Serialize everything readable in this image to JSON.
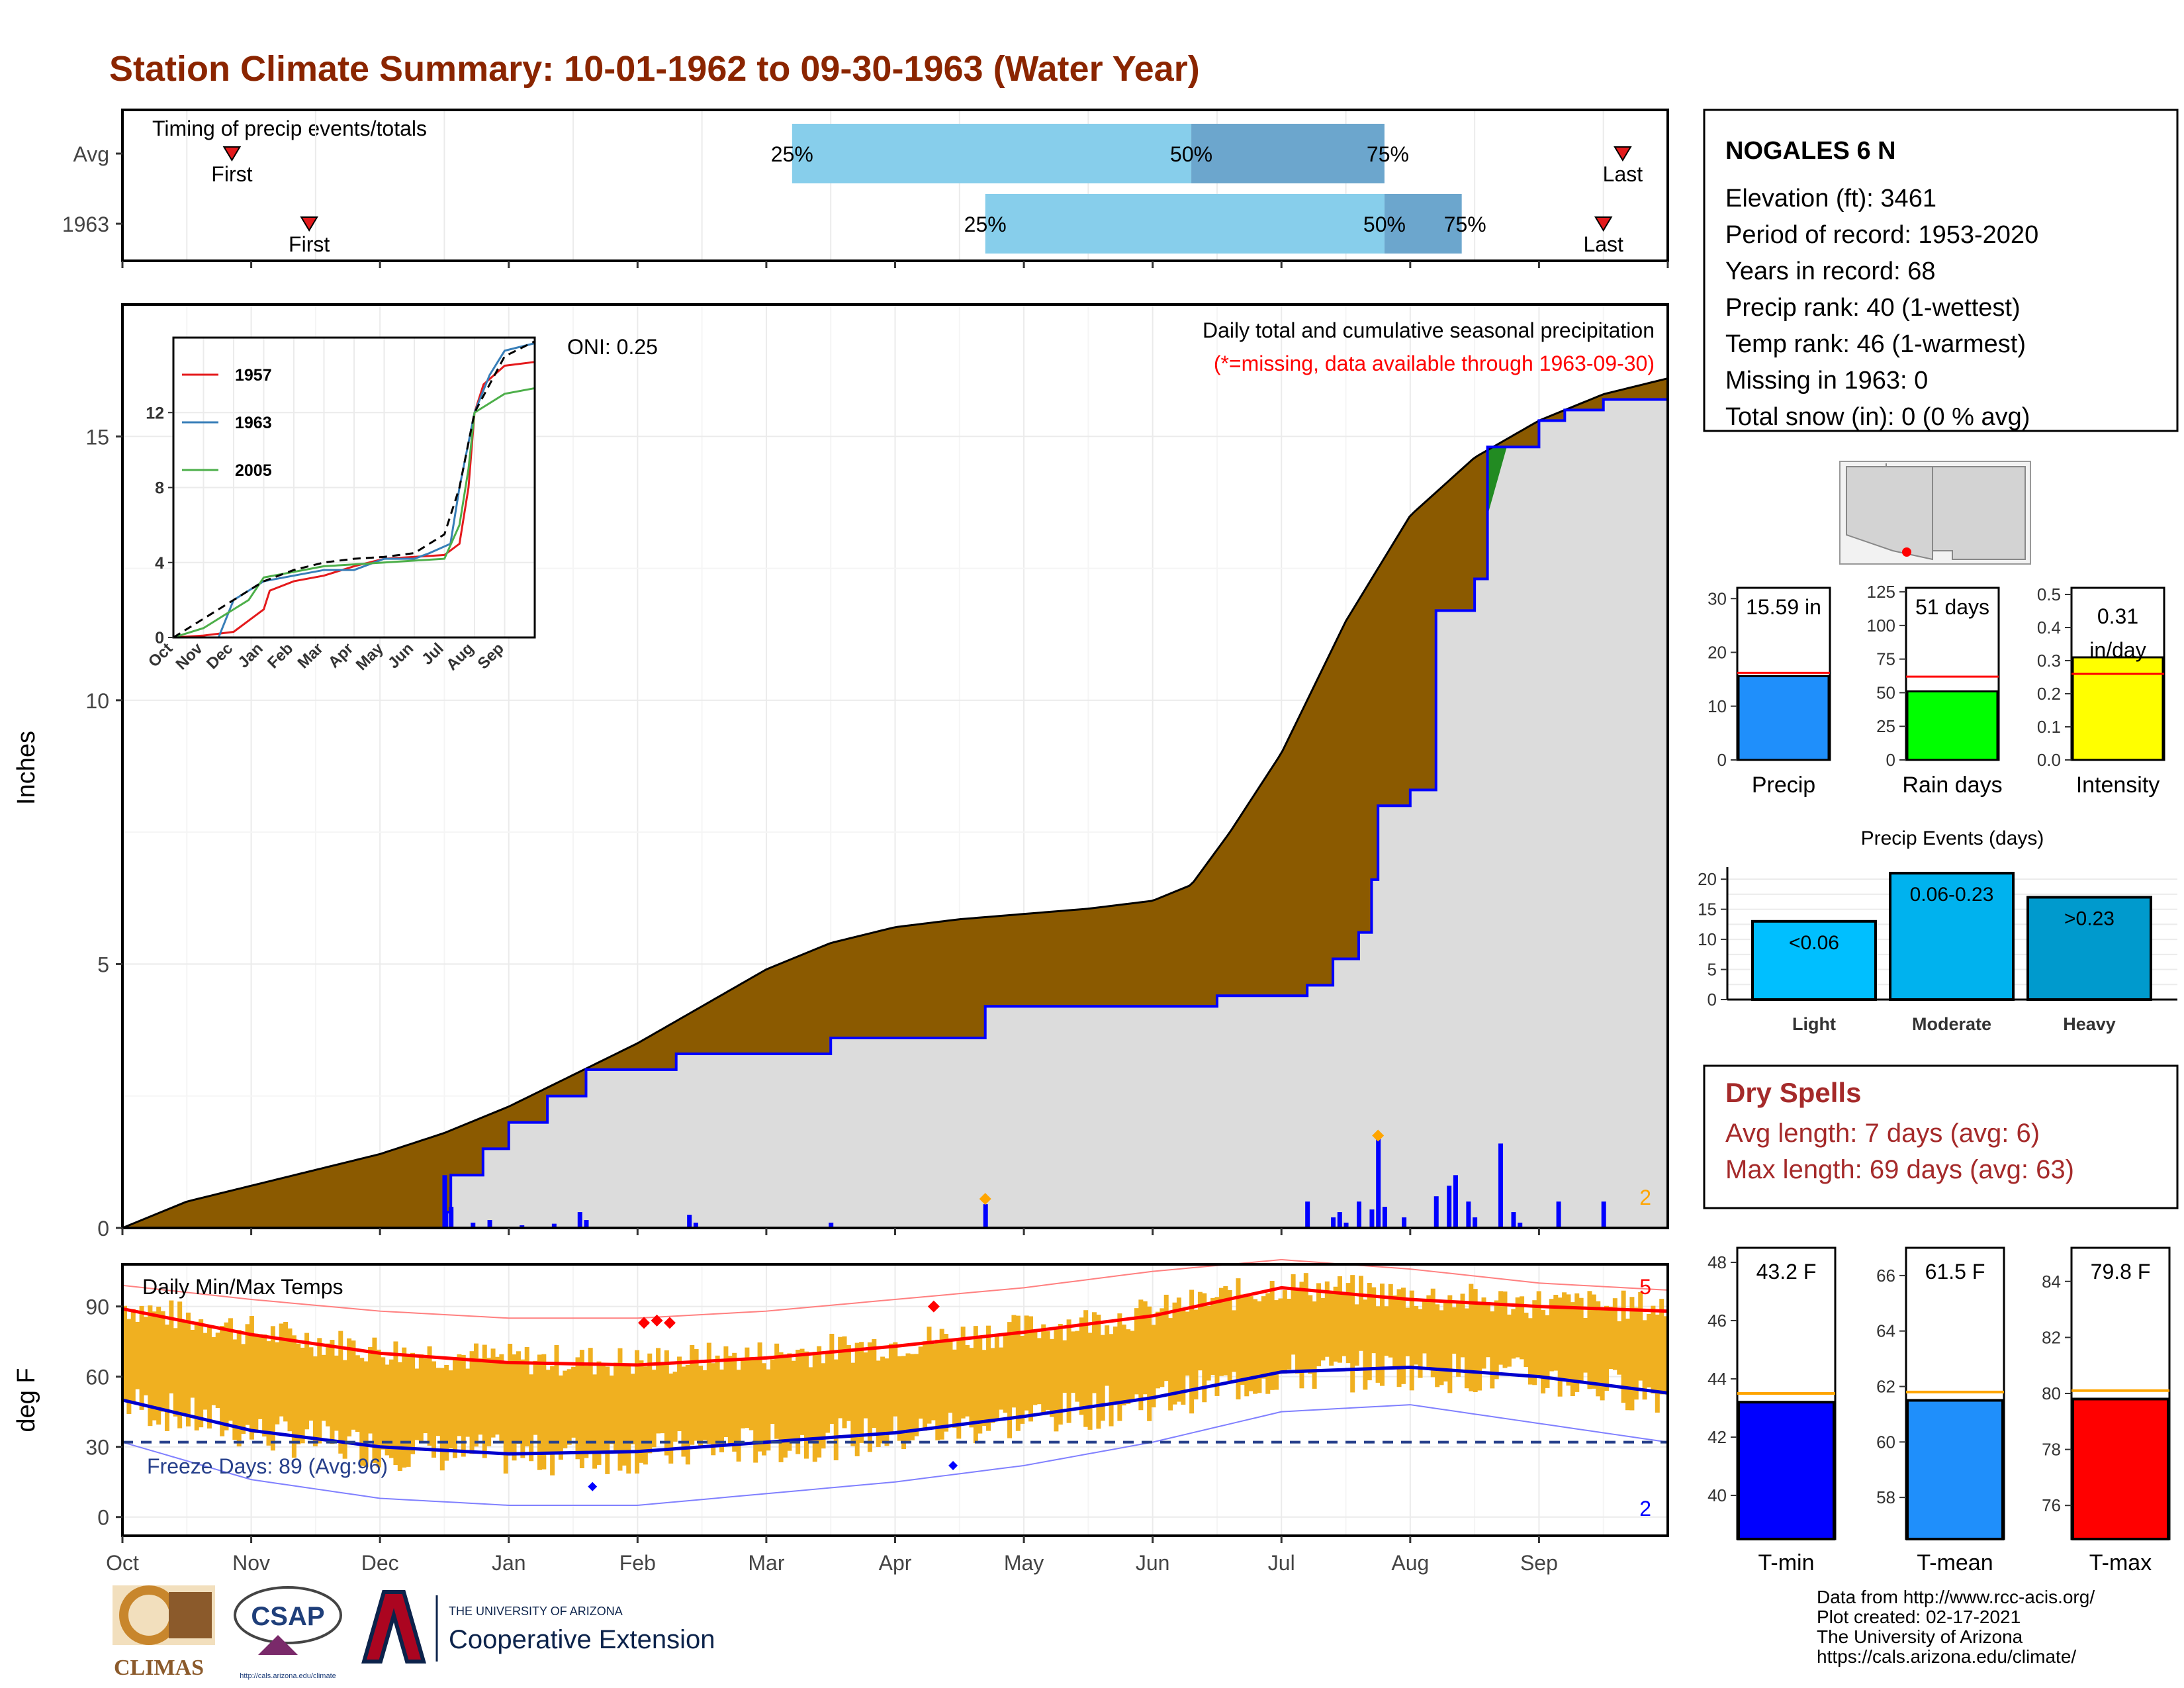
{
  "title": "Station Climate Summary: 10-01-1962 to 09-30-1963 (Water Year)",
  "timing": {
    "panel_label": "Timing of precip events/totals",
    "rows": [
      {
        "label": "Avg",
        "first_label": "First",
        "last_label": "Last",
        "first_month": 0.85,
        "last_month": 11.65,
        "p25_month": 5.2,
        "p50_month": 8.3,
        "p75_month": 9.8,
        "p25_label": "25%",
        "p50_label": "50%",
        "p75_label": "75%"
      },
      {
        "label": "1963",
        "first_label": "First",
        "last_label": "Last",
        "first_month": 1.45,
        "last_month": 11.5,
        "p25_month": 6.7,
        "p50_month": 9.8,
        "p75_month": 10.4,
        "p25_label": "25%",
        "p50_label": "50%",
        "p75_label": "75%"
      }
    ]
  },
  "station": {
    "name": "NOGALES 6 N",
    "lines": [
      "Elevation (ft): 3461",
      "Period of record: 1953-2020",
      "Years in record: 68",
      "Precip rank: 40 (1-wettest)",
      "Temp rank: 46 (1-warmest)",
      "Missing in 1963: 0",
      "Total snow (in): 0 (0 % avg)"
    ]
  },
  "precip_panel": {
    "ylabel": "Inches",
    "yticks": [
      0,
      5,
      10,
      15
    ],
    "ymax": 17.5,
    "title_line1": "Daily total and cumulative seasonal precipitation",
    "title_line2": "(*=missing, data available through 1963-09-30)",
    "oni_label": "ONI: 0.25",
    "corner_count": "2",
    "avg_cumulative": [
      [
        0,
        0
      ],
      [
        0.5,
        0.5
      ],
      [
        1,
        0.8
      ],
      [
        1.5,
        1.1
      ],
      [
        2,
        1.4
      ],
      [
        2.5,
        1.8
      ],
      [
        3,
        2.3
      ],
      [
        3.5,
        2.9
      ],
      [
        4,
        3.5
      ],
      [
        4.5,
        4.2
      ],
      [
        5,
        4.9
      ],
      [
        5.5,
        5.4
      ],
      [
        6,
        5.7
      ],
      [
        6.5,
        5.85
      ],
      [
        7,
        5.95
      ],
      [
        7.5,
        6.05
      ],
      [
        8,
        6.2
      ],
      [
        8.3,
        6.5
      ],
      [
        8.6,
        7.5
      ],
      [
        9,
        9.0
      ],
      [
        9.5,
        11.5
      ],
      [
        10,
        13.5
      ],
      [
        10.5,
        14.6
      ],
      [
        11,
        15.3
      ],
      [
        11.5,
        15.8
      ],
      [
        12,
        16.1
      ]
    ],
    "year_cumulative": [
      [
        0,
        0
      ],
      [
        2,
        0
      ],
      [
        2.52,
        0.3
      ],
      [
        2.55,
        1.0
      ],
      [
        2.8,
        1.5
      ],
      [
        3.0,
        2.0
      ],
      [
        3.3,
        2.5
      ],
      [
        3.6,
        3.0
      ],
      [
        4.0,
        3.0
      ],
      [
        4.3,
        3.0
      ],
      [
        4.3,
        3.3
      ],
      [
        5.0,
        3.3
      ],
      [
        5.5,
        3.6
      ],
      [
        6.0,
        3.6
      ],
      [
        6.7,
        3.6
      ],
      [
        6.7,
        4.2
      ],
      [
        8.0,
        4.2
      ],
      [
        8.3,
        4.2
      ],
      [
        8.5,
        4.4
      ],
      [
        9.2,
        4.6
      ],
      [
        9.4,
        5.1
      ],
      [
        9.6,
        5.6
      ],
      [
        9.7,
        6.6
      ],
      [
        9.75,
        8.0
      ],
      [
        10.0,
        8.3
      ],
      [
        10.2,
        11.7
      ],
      [
        10.5,
        12.3
      ],
      [
        10.6,
        14.8
      ],
      [
        11.0,
        15.3
      ],
      [
        11.2,
        15.5
      ],
      [
        11.5,
        15.7
      ],
      [
        12,
        15.7
      ]
    ],
    "daily_bars": [
      [
        2.5,
        1.0
      ],
      [
        2.55,
        0.4
      ],
      [
        2.72,
        0.1
      ],
      [
        2.85,
        0.15
      ],
      [
        3.1,
        0.05
      ],
      [
        3.35,
        0.08
      ],
      [
        3.55,
        0.3
      ],
      [
        3.6,
        0.15
      ],
      [
        4.4,
        0.25
      ],
      [
        4.45,
        0.1
      ],
      [
        5.5,
        0.1
      ],
      [
        6.7,
        0.45
      ],
      [
        9.2,
        0.5
      ],
      [
        9.4,
        0.2
      ],
      [
        9.45,
        0.3
      ],
      [
        9.5,
        0.1
      ],
      [
        9.6,
        0.5
      ],
      [
        9.7,
        0.35
      ],
      [
        9.75,
        1.7
      ],
      [
        9.8,
        0.4
      ],
      [
        9.95,
        0.2
      ],
      [
        10.2,
        0.6
      ],
      [
        10.3,
        0.8
      ],
      [
        10.35,
        1.0
      ],
      [
        10.45,
        0.5
      ],
      [
        10.5,
        0.2
      ],
      [
        10.7,
        1.6
      ],
      [
        10.8,
        0.3
      ],
      [
        10.85,
        0.1
      ],
      [
        11.15,
        0.5
      ],
      [
        11.5,
        0.5
      ]
    ],
    "markers": [
      [
        6.7,
        0.55
      ],
      [
        9.75,
        1.75
      ]
    ]
  },
  "inset": {
    "series": [
      {
        "name": "1957",
        "color": "#e41a1c",
        "points": [
          [
            0,
            0
          ],
          [
            1,
            0.1
          ],
          [
            2,
            0.3
          ],
          [
            3,
            1.5
          ],
          [
            3.2,
            2.5
          ],
          [
            4,
            3
          ],
          [
            5,
            3.3
          ],
          [
            6,
            3.8
          ],
          [
            7,
            4.2
          ],
          [
            8,
            4.3
          ],
          [
            9,
            4.4
          ],
          [
            9.5,
            5
          ],
          [
            9.8,
            8
          ],
          [
            10,
            12
          ],
          [
            10.3,
            13.5
          ],
          [
            11,
            14.5
          ],
          [
            12,
            14.7
          ]
        ]
      },
      {
        "name": "1963",
        "color": "#377eb8",
        "points": [
          [
            0,
            0
          ],
          [
            1.5,
            0
          ],
          [
            2,
            2
          ],
          [
            3,
            3
          ],
          [
            4,
            3.3
          ],
          [
            5,
            3.6
          ],
          [
            6,
            3.6
          ],
          [
            7,
            4.2
          ],
          [
            8,
            4.2
          ],
          [
            8.5,
            4.5
          ],
          [
            9.2,
            5
          ],
          [
            9.5,
            8
          ],
          [
            10,
            12
          ],
          [
            10.5,
            14
          ],
          [
            11,
            15.3
          ],
          [
            12,
            15.7
          ]
        ]
      },
      {
        "name": "2005",
        "color": "#4daf4a",
        "points": [
          [
            0,
            0
          ],
          [
            1,
            0.5
          ],
          [
            2,
            1.5
          ],
          [
            2.5,
            2.0
          ],
          [
            3,
            3.2
          ],
          [
            4,
            3.5
          ],
          [
            5,
            3.8
          ],
          [
            6,
            3.9
          ],
          [
            7,
            4.0
          ],
          [
            8,
            4.1
          ],
          [
            9,
            4.2
          ],
          [
            9.5,
            6
          ],
          [
            9.8,
            9
          ],
          [
            10,
            12
          ],
          [
            10.5,
            12.5
          ],
          [
            11,
            13
          ],
          [
            12,
            13.3
          ]
        ]
      }
    ],
    "avg_points": [
      [
        0,
        0
      ],
      [
        1,
        1
      ],
      [
        2,
        2
      ],
      [
        3,
        3
      ],
      [
        4,
        3.6
      ],
      [
        5,
        4
      ],
      [
        6,
        4.2
      ],
      [
        7,
        4.3
      ],
      [
        8,
        4.5
      ],
      [
        9,
        5.5
      ],
      [
        9.5,
        8
      ],
      [
        10,
        12
      ],
      [
        10.5,
        13.5
      ],
      [
        11,
        15
      ],
      [
        12,
        15.8
      ]
    ],
    "yticks": [
      0,
      4,
      8,
      12
    ],
    "ymax": 16,
    "months": [
      "Oct",
      "Nov",
      "Dec",
      "Jan",
      "Feb",
      "Mar",
      "Apr",
      "May",
      "Jun",
      "Jul",
      "Aug",
      "Sep"
    ]
  },
  "temp_panel": {
    "ylabel": "deg F",
    "yticks": [
      0,
      30,
      60,
      90
    ],
    "ymin": -8,
    "ymax": 108,
    "title": "Daily Min/Max Temps",
    "freeze_label": "Freeze Days: 89 (Avg:96)",
    "freeze_temp": 32,
    "count_high": "5",
    "count_low": "2",
    "normal_max": [
      [
        0,
        89
      ],
      [
        1,
        78
      ],
      [
        2,
        70
      ],
      [
        3,
        66
      ],
      [
        4,
        65
      ],
      [
        5,
        68
      ],
      [
        6,
        73
      ],
      [
        7,
        79
      ],
      [
        8,
        86
      ],
      [
        9,
        98
      ],
      [
        10,
        93
      ],
      [
        11,
        90
      ],
      [
        12,
        88
      ]
    ],
    "normal_min": [
      [
        0,
        50
      ],
      [
        1,
        37
      ],
      [
        2,
        30
      ],
      [
        3,
        27
      ],
      [
        4,
        28
      ],
      [
        5,
        32
      ],
      [
        6,
        36
      ],
      [
        7,
        43
      ],
      [
        8,
        51
      ],
      [
        9,
        62
      ],
      [
        10,
        64
      ],
      [
        11,
        60
      ],
      [
        12,
        53
      ]
    ],
    "record_max": [
      [
        0,
        99
      ],
      [
        1,
        93
      ],
      [
        2,
        88
      ],
      [
        3,
        85
      ],
      [
        4,
        85
      ],
      [
        5,
        88
      ],
      [
        6,
        93
      ],
      [
        7,
        98
      ],
      [
        8,
        105
      ],
      [
        9,
        110
      ],
      [
        10,
        106
      ],
      [
        11,
        100
      ],
      [
        12,
        97
      ]
    ],
    "record_min": [
      [
        0,
        32
      ],
      [
        1,
        16
      ],
      [
        2,
        8
      ],
      [
        3,
        5
      ],
      [
        4,
        5
      ],
      [
        5,
        10
      ],
      [
        6,
        15
      ],
      [
        7,
        22
      ],
      [
        8,
        32
      ],
      [
        9,
        45
      ],
      [
        10,
        48
      ],
      [
        11,
        40
      ],
      [
        12,
        32
      ]
    ]
  },
  "months_main": [
    "Oct",
    "Nov",
    "Dec",
    "Jan",
    "Feb",
    "Mar",
    "Apr",
    "May",
    "Jun",
    "Jul",
    "Aug",
    "Sep"
  ],
  "mini_bars": [
    {
      "label": "Precip",
      "value_label": "15.59 in",
      "value": 15.59,
      "avg": 16.2,
      "ymax": 32,
      "yticks": [
        0,
        10,
        20,
        30
      ],
      "color": "#1f8ffb"
    },
    {
      "label": "Rain days",
      "value_label": "51 days",
      "value": 51,
      "avg": 62,
      "ymax": 128,
      "yticks": [
        0,
        25,
        50,
        75,
        100,
        125
      ],
      "color": "#00ff00"
    },
    {
      "label": "Intensity",
      "value_label": "0.31 in/day",
      "value": 0.31,
      "avg": 0.26,
      "ymax": 0.52,
      "yticks": [
        0.0,
        0.1,
        0.2,
        0.3,
        0.4,
        0.5
      ],
      "color": "#ffff00"
    }
  ],
  "events": {
    "title": "Precip Events (days)",
    "yticks": [
      0,
      5,
      10,
      15,
      20
    ],
    "ymax": 22,
    "bars": [
      {
        "label": "Light",
        "bar_label": "<0.06",
        "value": 13,
        "color": "#00bfff"
      },
      {
        "label": "Moderate",
        "bar_label": "0.06-0.23",
        "value": 21,
        "color": "#00b2ee"
      },
      {
        "label": "Heavy",
        "bar_label": ">0.23",
        "value": 17,
        "color": "#009acd"
      }
    ]
  },
  "dry_spells": {
    "title": "Dry Spells",
    "line1": "Avg length: 7 days (avg: 6)",
    "line2": "Max length: 69 days (avg: 63)"
  },
  "temp_bars": [
    {
      "label": "T-min",
      "value_label": "43.2 F",
      "value": 43.2,
      "avg": 43.5,
      "ymin": 38.5,
      "ymax": 48.5,
      "yticks": [
        40,
        42,
        44,
        46,
        48
      ],
      "color": "#0000ff"
    },
    {
      "label": "T-mean",
      "value_label": "61.5 F",
      "value": 61.5,
      "avg": 61.8,
      "ymin": 56.5,
      "ymax": 67,
      "yticks": [
        58,
        60,
        62,
        64,
        66
      ],
      "color": "#1f8ffb"
    },
    {
      "label": "T-max",
      "value_label": "79.8 F",
      "value": 79.8,
      "avg": 80.1,
      "ymin": 74.8,
      "ymax": 85.2,
      "yticks": [
        76,
        78,
        80,
        82,
        84
      ],
      "color": "#ff0000"
    }
  ],
  "logos": {
    "climas": "CLIMAS",
    "csap": "CSAP",
    "csap_url": "http://cals.arizona.edu/climate",
    "ua_line1": "THE UNIVERSITY OF ARIZONA",
    "ua_line2": "Cooperative Extension"
  },
  "footer": [
    "Data from http://www.rcc-acis.org/",
    "Plot created: 02-17-2021",
    "The University of Arizona",
    "https://cals.arizona.edu/climate/"
  ],
  "colors": {
    "title": "#8b2500",
    "avg_fill": "#8b5a00",
    "year_fill": "#dcdcdc",
    "year_line": "#0000ff",
    "temp_bar": "#f0b020",
    "timing_light": "#87ceeb",
    "timing_dark": "#6ca6cd",
    "dry_spells": "#a52a2a"
  }
}
